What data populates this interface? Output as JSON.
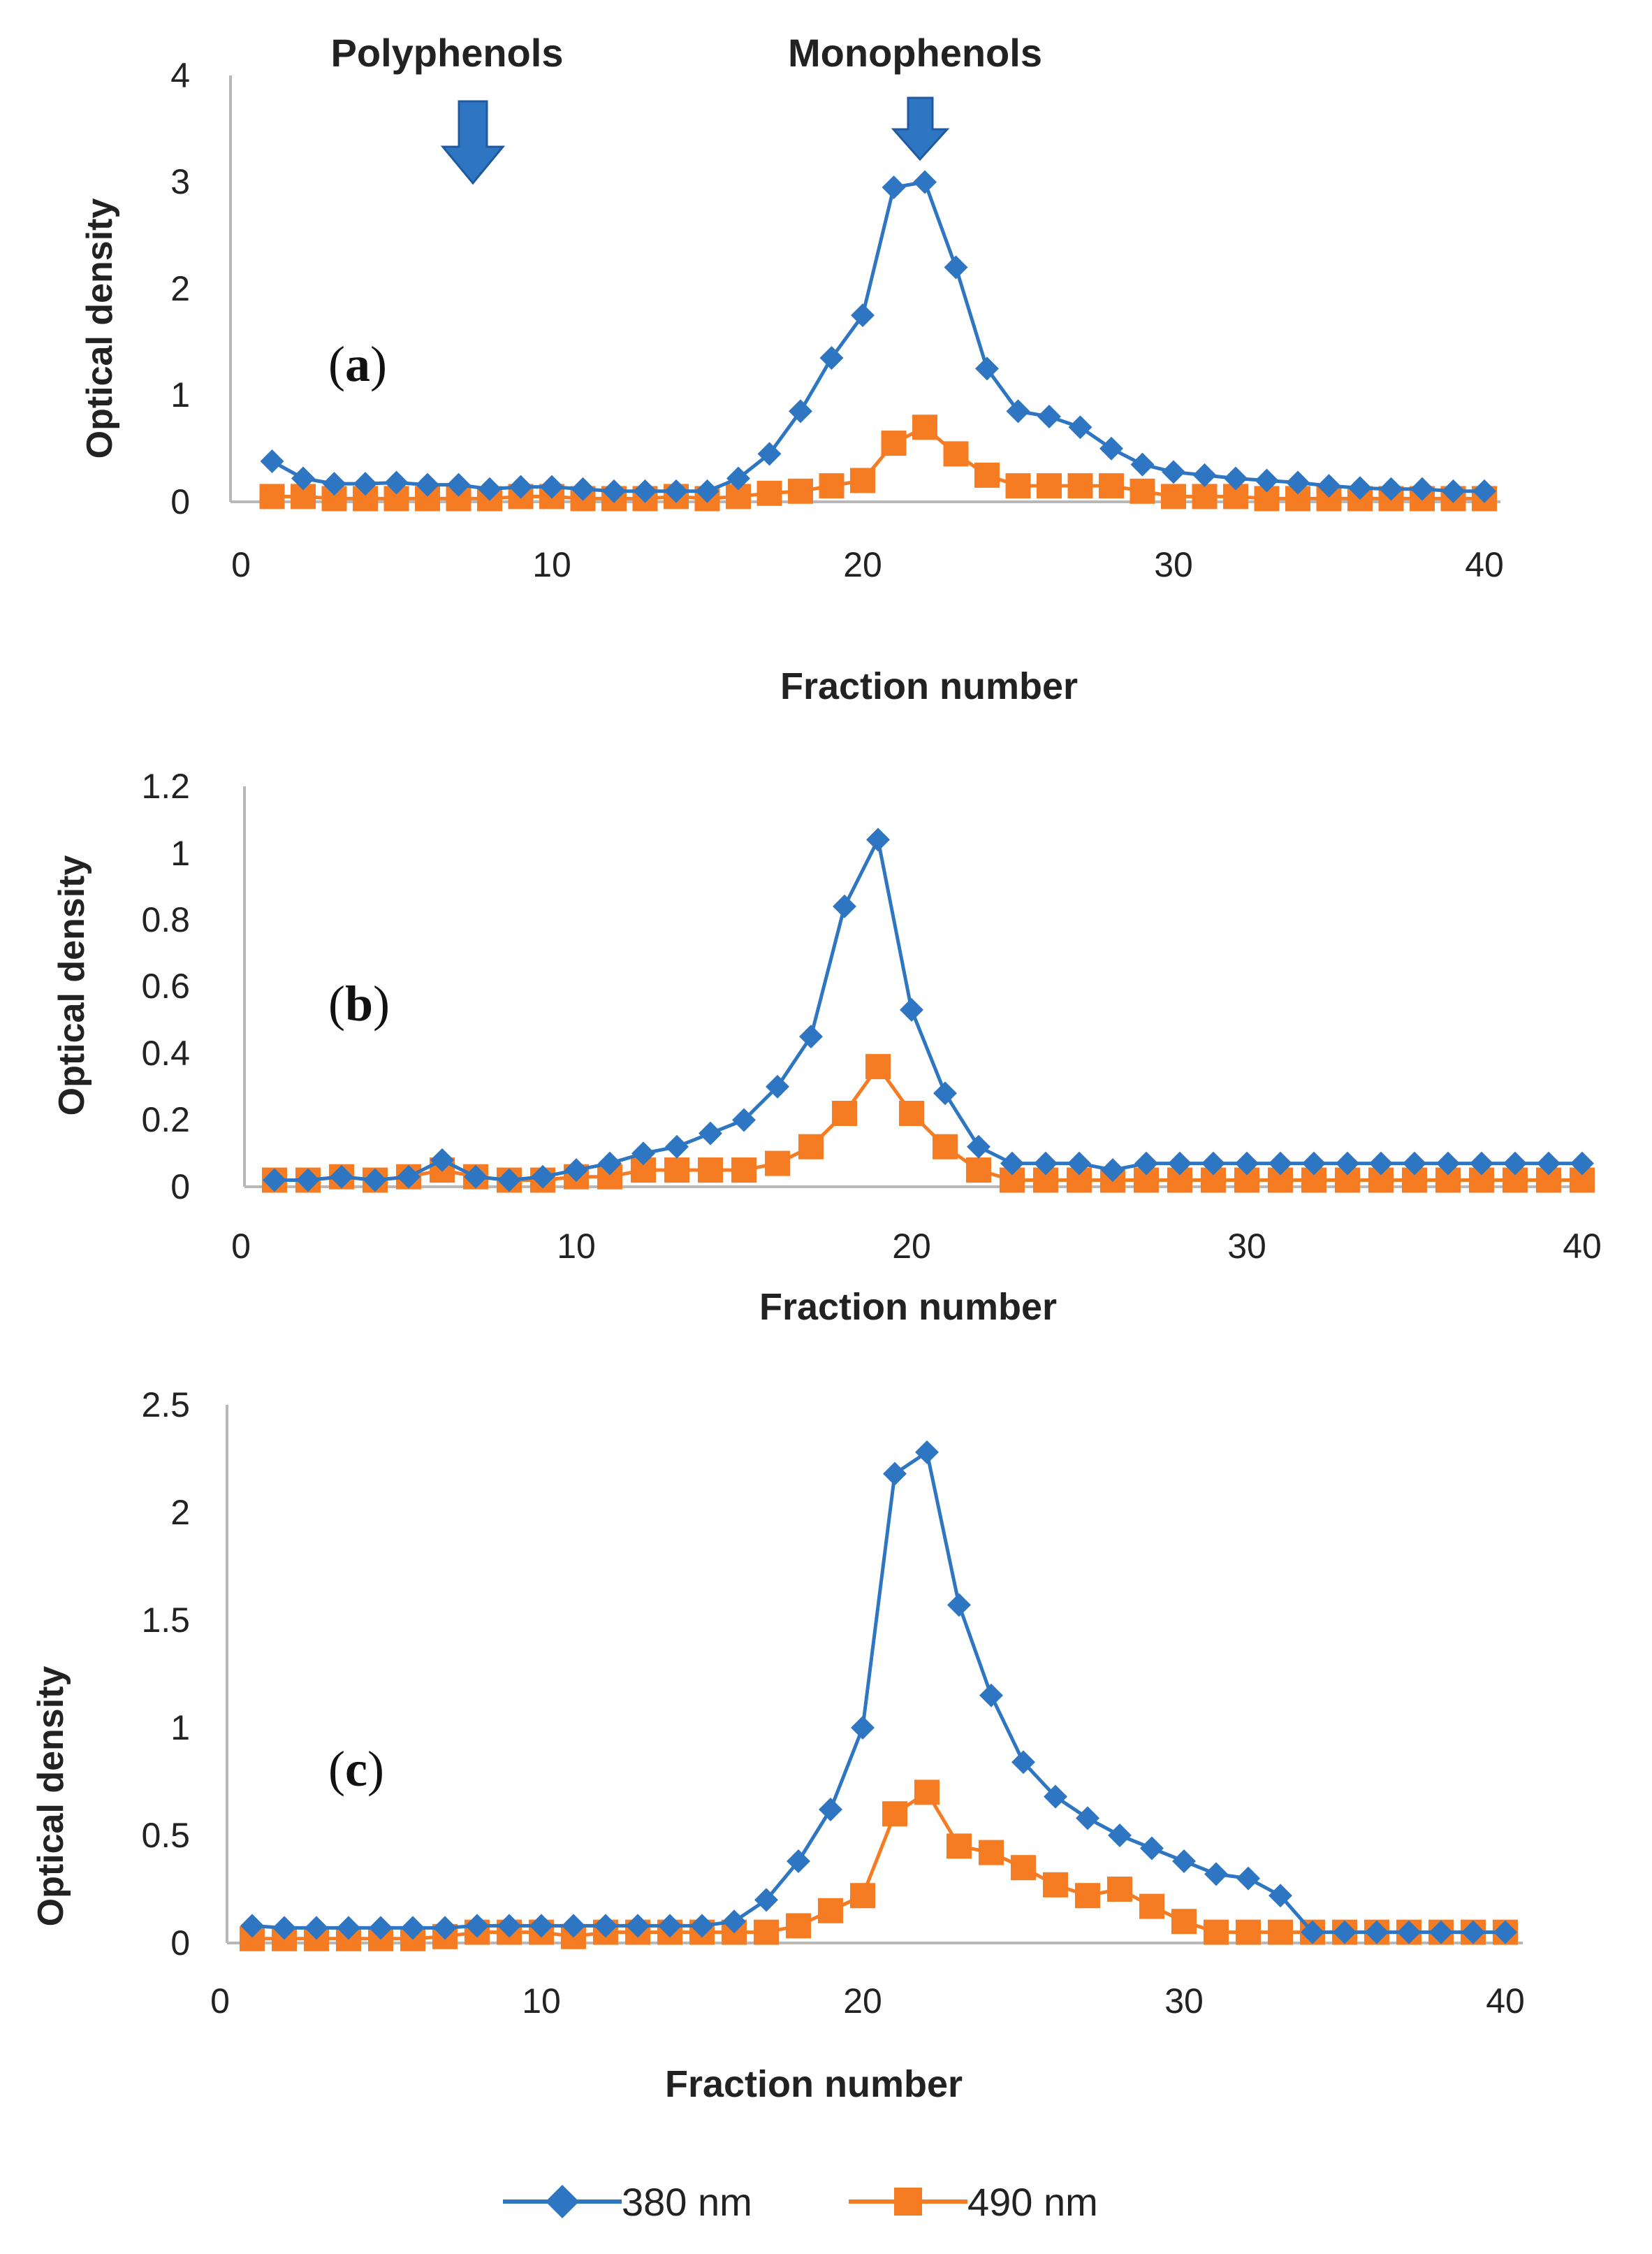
{
  "chart_data": [
    {
      "type": "line",
      "panel_label": "a",
      "title": "",
      "xlabel": "Fraction number",
      "ylabel": "Optical density",
      "xlim": [
        0,
        40
      ],
      "ylim": [
        0,
        4
      ],
      "xticks": [
        "0",
        "10",
        "20",
        "30",
        "40"
      ],
      "yticks": [
        "0",
        "1",
        "2",
        "3",
        "4"
      ],
      "annotations": [
        {
          "text": "Polyphenols",
          "x": 7.5
        },
        {
          "text": "Monophenols",
          "x": 21.5
        }
      ],
      "x": [
        1,
        2,
        3,
        4,
        5,
        6,
        7,
        8,
        9,
        10,
        11,
        12,
        13,
        14,
        15,
        16,
        17,
        18,
        19,
        20,
        21,
        22,
        23,
        24,
        25,
        26,
        27,
        28,
        29,
        30,
        31,
        32,
        33,
        34,
        35,
        36,
        37,
        38,
        39,
        40
      ],
      "series": [
        {
          "name": "380 nm",
          "color": "#2e75c2",
          "marker": "diamond",
          "values": [
            0.38,
            0.22,
            0.17,
            0.17,
            0.18,
            0.16,
            0.16,
            0.12,
            0.14,
            0.14,
            0.12,
            0.1,
            0.1,
            0.1,
            0.1,
            0.22,
            0.45,
            0.85,
            1.35,
            1.75,
            2.95,
            3.0,
            2.2,
            1.25,
            0.85,
            0.8,
            0.7,
            0.5,
            0.35,
            0.28,
            0.25,
            0.22,
            0.2,
            0.18,
            0.15,
            0.13,
            0.12,
            0.12,
            0.1,
            0.1
          ]
        },
        {
          "name": "490 nm",
          "color": "#f57c22",
          "marker": "square",
          "values": [
            0.05,
            0.05,
            0.03,
            0.03,
            0.03,
            0.03,
            0.03,
            0.03,
            0.05,
            0.05,
            0.03,
            0.03,
            0.03,
            0.05,
            0.03,
            0.05,
            0.08,
            0.1,
            0.15,
            0.2,
            0.55,
            0.7,
            0.45,
            0.25,
            0.15,
            0.15,
            0.15,
            0.15,
            0.1,
            0.05,
            0.05,
            0.05,
            0.03,
            0.03,
            0.03,
            0.03,
            0.03,
            0.03,
            0.03,
            0.03
          ]
        }
      ]
    },
    {
      "type": "line",
      "panel_label": "b",
      "title": "",
      "xlabel": "Fraction number",
      "ylabel": "Optical density",
      "xlim": [
        0,
        40
      ],
      "ylim": [
        0,
        1.2
      ],
      "xticks": [
        "0",
        "10",
        "20",
        "30",
        "40"
      ],
      "yticks": [
        "0",
        "0.2",
        "0.4",
        "0.6",
        "0.8",
        "1",
        "1.2"
      ],
      "x": [
        1,
        2,
        3,
        4,
        5,
        6,
        7,
        8,
        9,
        10,
        11,
        12,
        13,
        14,
        15,
        16,
        17,
        18,
        19,
        20,
        21,
        22,
        23,
        24,
        25,
        26,
        27,
        28,
        29,
        30,
        31,
        32,
        33,
        34,
        35,
        36,
        37,
        38,
        39,
        40
      ],
      "series": [
        {
          "name": "380 nm",
          "color": "#2e75c2",
          "marker": "diamond",
          "values": [
            0.02,
            0.02,
            0.03,
            0.02,
            0.03,
            0.08,
            0.03,
            0.02,
            0.03,
            0.05,
            0.07,
            0.1,
            0.12,
            0.16,
            0.2,
            0.3,
            0.45,
            0.84,
            1.04,
            0.53,
            0.28,
            0.12,
            0.07,
            0.07,
            0.07,
            0.05,
            0.07,
            0.07,
            0.07,
            0.07,
            0.07,
            0.07,
            0.07,
            0.07,
            0.07,
            0.07,
            0.07,
            0.07,
            0.07,
            0.07
          ]
        },
        {
          "name": "490 nm",
          "color": "#f57c22",
          "marker": "square",
          "values": [
            0.02,
            0.02,
            0.03,
            0.02,
            0.03,
            0.05,
            0.03,
            0.02,
            0.02,
            0.03,
            0.03,
            0.05,
            0.05,
            0.05,
            0.05,
            0.07,
            0.12,
            0.22,
            0.36,
            0.22,
            0.12,
            0.05,
            0.02,
            0.02,
            0.02,
            0.02,
            0.02,
            0.02,
            0.02,
            0.02,
            0.02,
            0.02,
            0.02,
            0.02,
            0.02,
            0.02,
            0.02,
            0.02,
            0.02,
            0.02
          ]
        }
      ]
    },
    {
      "type": "line",
      "panel_label": "c",
      "title": "",
      "xlabel": "Fraction number",
      "ylabel": "Optical density",
      "xlim": [
        0,
        40
      ],
      "ylim": [
        0,
        2.5
      ],
      "xticks": [
        "0",
        "10",
        "20",
        "30",
        "40"
      ],
      "yticks": [
        "0",
        "0.5",
        "1",
        "1.5",
        "2",
        "2.5"
      ],
      "x": [
        1,
        2,
        3,
        4,
        5,
        6,
        7,
        8,
        9,
        10,
        11,
        12,
        13,
        14,
        15,
        16,
        17,
        18,
        19,
        20,
        21,
        22,
        23,
        24,
        25,
        26,
        27,
        28,
        29,
        30,
        31,
        32,
        33,
        34,
        35,
        36,
        37,
        38,
        39,
        40
      ],
      "series": [
        {
          "name": "380 nm",
          "color": "#2e75c2",
          "marker": "diamond",
          "values": [
            0.08,
            0.07,
            0.07,
            0.07,
            0.07,
            0.07,
            0.07,
            0.08,
            0.08,
            0.08,
            0.08,
            0.08,
            0.08,
            0.08,
            0.08,
            0.1,
            0.2,
            0.38,
            0.62,
            1.0,
            2.18,
            2.28,
            1.57,
            1.15,
            0.84,
            0.68,
            0.58,
            0.5,
            0.44,
            0.38,
            0.32,
            0.3,
            0.22,
            0.05,
            0.05,
            0.05,
            0.05,
            0.05,
            0.05,
            0.05
          ]
        },
        {
          "name": "490 nm",
          "color": "#f57c22",
          "marker": "square",
          "values": [
            0.02,
            0.02,
            0.02,
            0.02,
            0.02,
            0.02,
            0.03,
            0.05,
            0.05,
            0.05,
            0.03,
            0.05,
            0.05,
            0.05,
            0.05,
            0.05,
            0.05,
            0.08,
            0.15,
            0.22,
            0.6,
            0.7,
            0.45,
            0.42,
            0.35,
            0.27,
            0.22,
            0.25,
            0.17,
            0.1,
            0.05,
            0.05,
            0.05,
            0.05,
            0.05,
            0.05,
            0.05,
            0.05,
            0.05,
            0.05
          ]
        }
      ]
    }
  ],
  "legend": {
    "items": [
      {
        "label": "380 nm",
        "color": "#2e75c2",
        "marker": "diamond"
      },
      {
        "label": "490 nm",
        "color": "#f57c22",
        "marker": "square"
      }
    ],
    "placement": "bottom-center"
  },
  "colors": {
    "axis": "#b8b8b8",
    "arrow": "#2e75c2"
  }
}
